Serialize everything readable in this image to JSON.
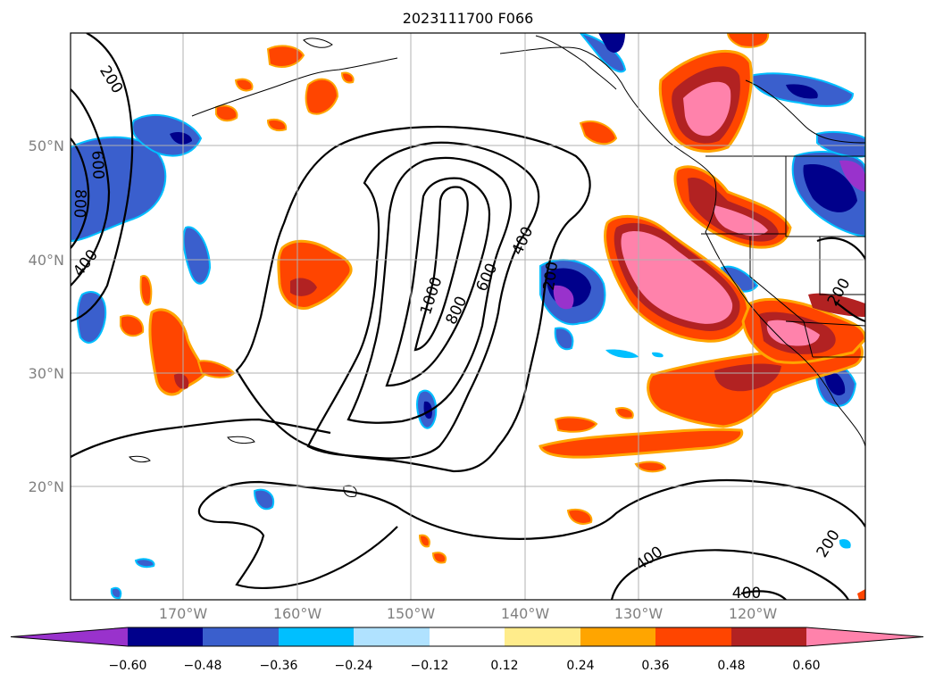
{
  "figure": {
    "title": "2023111700 F066"
  },
  "map": {
    "lat_ticks": [
      {
        "value": 50,
        "label": "50°N"
      },
      {
        "value": 40,
        "label": "40°N"
      },
      {
        "value": 30,
        "label": "30°N"
      },
      {
        "value": 20,
        "label": "20°N"
      }
    ],
    "lon_ticks": [
      {
        "value": -170,
        "label": "170°W"
      },
      {
        "value": -160,
        "label": "160°W"
      },
      {
        "value": -150,
        "label": "150°W"
      },
      {
        "value": -140,
        "label": "140°W"
      },
      {
        "value": -130,
        "label": "130°W"
      },
      {
        "value": -120,
        "label": "120°W"
      }
    ],
    "contour_labels": [
      "200",
      "600",
      "800",
      "400",
      "1000",
      "800",
      "600",
      "400",
      "200",
      "400",
      "400",
      "200",
      "200"
    ]
  },
  "colorbar": {
    "colors": [
      "#9932cc",
      "#00008b",
      "#3a5fcd",
      "#00bfff",
      "#b0e2ff",
      "#ffffff",
      "#ffec8b",
      "#ffa500",
      "#ff4500",
      "#b22222",
      "#ff82ab"
    ],
    "tick_labels": [
      "−0.60",
      "−0.48",
      "−0.36",
      "−0.24",
      "−0.12",
      "0.12",
      "0.24",
      "0.36",
      "0.48",
      "0.60"
    ]
  }
}
